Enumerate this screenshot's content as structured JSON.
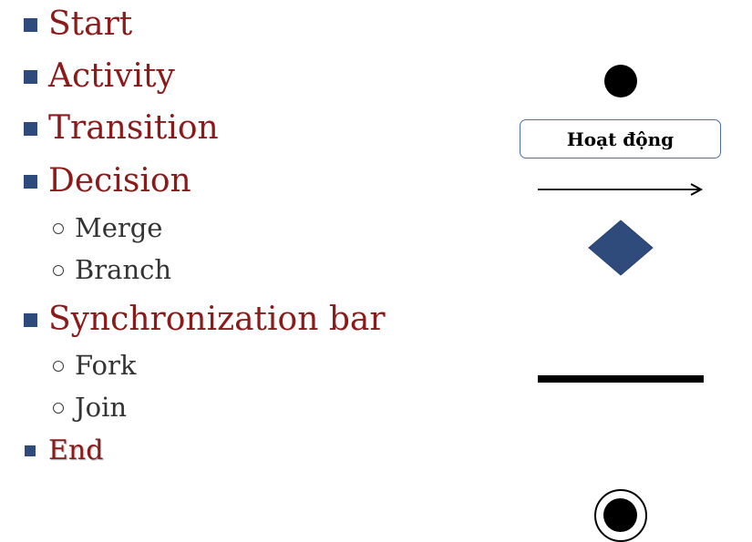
{
  "bullets": {
    "start": "Start",
    "activity": "Activity",
    "transition": "Transition",
    "decision": "Decision",
    "merge": "Merge",
    "branch": "Branch",
    "sync_bar": "Synchronization bar",
    "fork": "Fork",
    "join": "Join",
    "end": "End"
  },
  "symbols": {
    "activity_label": "Hoạt động"
  },
  "colors": {
    "heading_text": "#8b1a1a",
    "sub_text": "#333333",
    "bullet_square": "#2f4b7c",
    "decision_fill": "#2f4b7c",
    "activity_border": "#4d6fa6"
  },
  "icons": [
    "square-bullet",
    "hollow-circle-bullet",
    "start-node-icon",
    "activity-box",
    "arrow-icon",
    "diamond-icon",
    "sync-bar-icon",
    "end-node-icon"
  ]
}
